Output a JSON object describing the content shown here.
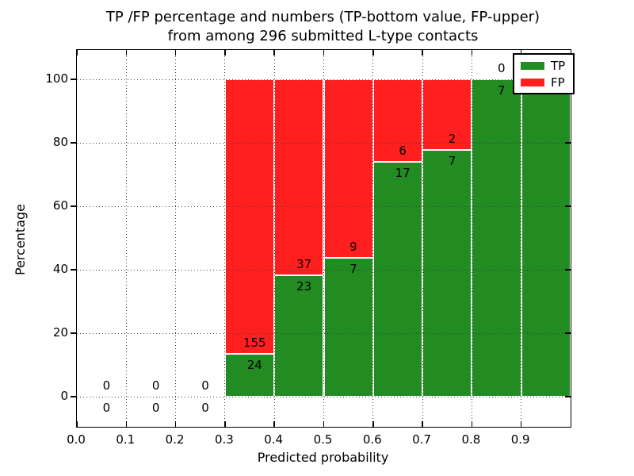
{
  "title": {
    "line1": "TP /FP percentage and numbers (TP-bottom value, FP-upper)",
    "line2": "from among 296 submitted L-type contacts"
  },
  "axes": {
    "xlabel": "Predicted probability",
    "ylabel": "Percentage",
    "x_ticks": [
      "0.0",
      "0.1",
      "0.2",
      "0.3",
      "0.4",
      "0.5",
      "0.6",
      "0.7",
      "0.8",
      "0.9"
    ],
    "y_ticks": [
      "0",
      "20",
      "40",
      "60",
      "80",
      "100"
    ]
  },
  "legend": {
    "position": "upper right",
    "items": [
      {
        "label": "TP",
        "color": "#228b22"
      },
      {
        "label": "FP",
        "color": "#ff1f1f"
      }
    ]
  },
  "chart_data": {
    "type": "bar",
    "stacked": true,
    "title": "TP /FP percentage and numbers (TP-bottom value, FP-upper) from among 296 submitted L-type contacts",
    "xlabel": "Predicted probability",
    "ylabel": "Percentage",
    "xlim": [
      0.0,
      1.0
    ],
    "ylim": [
      -10,
      110
    ],
    "grid": true,
    "total_submitted": 296,
    "note": "Each bin stacks to 100%; labels show FP count above the TP/FP boundary and TP count below it. Bins with no contacts show 0/0 at the zero line.",
    "bins": [
      {
        "x0": 0.0,
        "x1": 0.1,
        "tp": 0,
        "fp": 0,
        "tp_pct": 0
      },
      {
        "x0": 0.1,
        "x1": 0.2,
        "tp": 0,
        "fp": 0,
        "tp_pct": 0
      },
      {
        "x0": 0.2,
        "x1": 0.3,
        "tp": 0,
        "fp": 0,
        "tp_pct": 0
      },
      {
        "x0": 0.3,
        "x1": 0.4,
        "tp": 24,
        "fp": 155,
        "tp_pct": 13.41
      },
      {
        "x0": 0.4,
        "x1": 0.5,
        "tp": 23,
        "fp": 37,
        "tp_pct": 38.33
      },
      {
        "x0": 0.5,
        "x1": 0.6,
        "tp": 7,
        "fp": 9,
        "tp_pct": 43.75
      },
      {
        "x0": 0.6,
        "x1": 0.7,
        "tp": 17,
        "fp": 6,
        "tp_pct": 73.91
      },
      {
        "x0": 0.7,
        "x1": 0.8,
        "tp": 7,
        "fp": 2,
        "tp_pct": 77.78
      },
      {
        "x0": 0.8,
        "x1": 0.9,
        "tp": 7,
        "fp": 0,
        "tp_pct": 100
      },
      {
        "x0": 0.9,
        "x1": 1.0,
        "tp": 2,
        "fp": 0,
        "tp_pct": 100
      }
    ],
    "series": [
      {
        "name": "TP",
        "values": [
          0,
          0,
          0,
          24,
          23,
          7,
          17,
          7,
          7,
          2
        ]
      },
      {
        "name": "FP",
        "values": [
          0,
          0,
          0,
          155,
          37,
          9,
          6,
          2,
          0,
          0
        ]
      }
    ]
  }
}
